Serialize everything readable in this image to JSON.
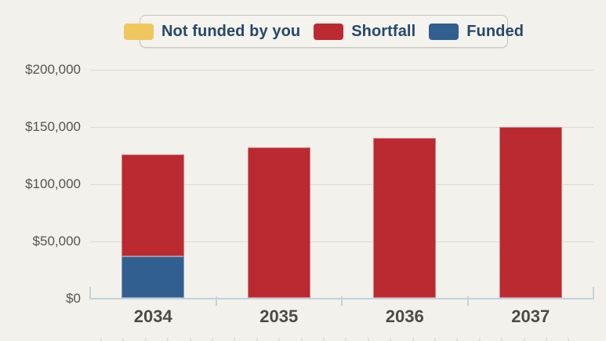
{
  "page": {
    "background_color": "#f2f1ec",
    "gridline_color": "#dbdad3",
    "axis_color": "#c3d2dc"
  },
  "legend": {
    "items": [
      {
        "label": "Not funded by you",
        "color": "#f0c75f"
      },
      {
        "label": "Shortfall",
        "color": "#bb2a31"
      },
      {
        "label": "Funded",
        "color": "#305f90"
      }
    ],
    "text_color": "#26486b"
  },
  "chart_data": {
    "type": "bar",
    "stacked": true,
    "stack_order": "bottom-to-top",
    "categories": [
      "2034",
      "2035",
      "2036",
      "2037"
    ],
    "series": [
      {
        "name": "Funded",
        "color": "#305f90",
        "values": [
          36000,
          0,
          0,
          0
        ]
      },
      {
        "name": "Shortfall",
        "color": "#bb2a31",
        "values": [
          89500,
          131500,
          139500,
          149500
        ]
      },
      {
        "name": "Not funded by you",
        "color": "#f0c75f",
        "values": [
          0,
          0,
          0,
          0
        ]
      }
    ],
    "title": "",
    "xlabel": "",
    "ylabel": "",
    "ylim": [
      0,
      200000
    ],
    "y_tick_values": [
      0,
      50000,
      100000,
      150000,
      200000
    ],
    "y_tick_labels": [
      "$0",
      "$50,000",
      "$100,000",
      "$150,000",
      "$200,000"
    ],
    "grid": true,
    "legend_position": "top"
  }
}
